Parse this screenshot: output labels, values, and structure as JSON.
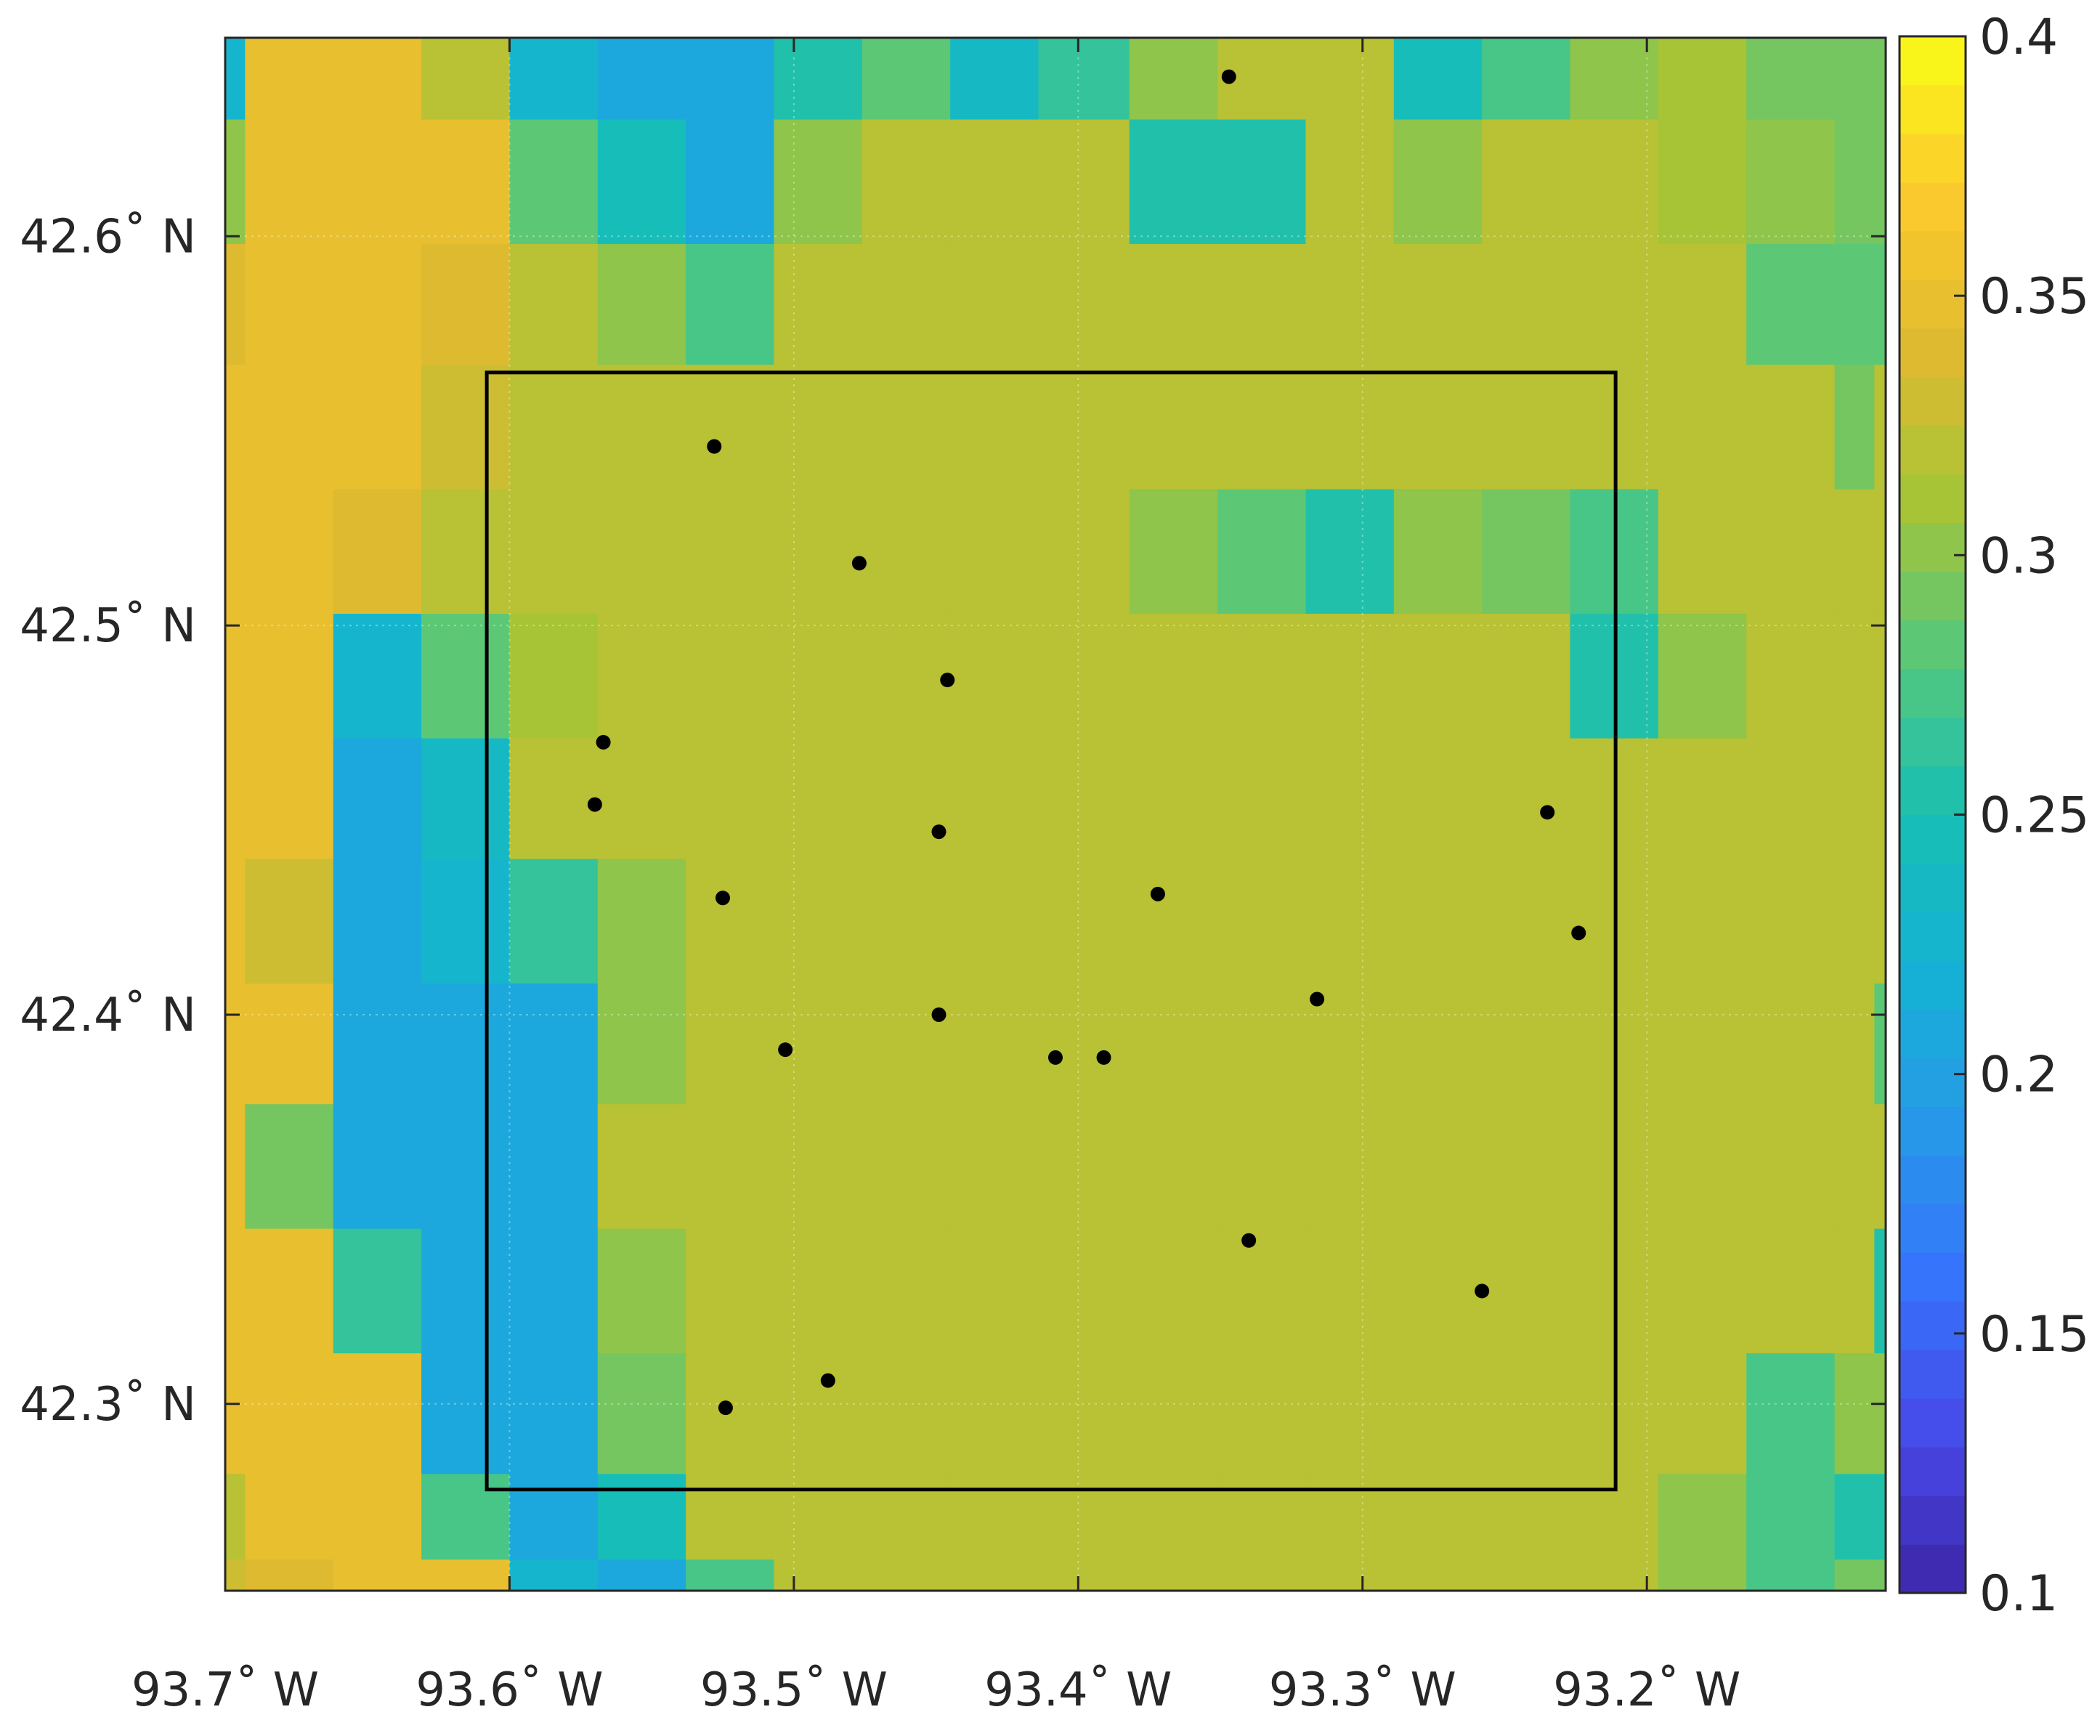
{
  "chart_data": {
    "type": "heatmap",
    "title": "",
    "xlabel": "",
    "ylabel": "",
    "x_ticks": [
      {
        "value": -93.7,
        "label": "93.7˚ W"
      },
      {
        "value": -93.6,
        "label": "93.6˚ W"
      },
      {
        "value": -93.5,
        "label": "93.5˚ W"
      },
      {
        "value": -93.4,
        "label": "93.4˚ W"
      },
      {
        "value": -93.3,
        "label": "93.3˚ W"
      },
      {
        "value": -93.2,
        "label": "93.2˚ W"
      }
    ],
    "y_ticks": [
      {
        "value": 42.3,
        "label": "42.3˚ N"
      },
      {
        "value": 42.4,
        "label": "42.4˚ N"
      },
      {
        "value": 42.5,
        "label": "42.5˚ N"
      },
      {
        "value": 42.6,
        "label": "42.6˚ N"
      }
    ],
    "xlim": [
      -93.7,
      -93.116
    ],
    "ylim": [
      42.252,
      42.651
    ],
    "grid": true,
    "colormap": "parula",
    "colorbar": {
      "clim": [
        0.1,
        0.4
      ],
      "levels": 32,
      "location": "right",
      "ticks": [
        {
          "value": 0.1,
          "label": "0.1"
        },
        {
          "value": 0.15,
          "label": "0.15"
        },
        {
          "value": 0.2,
          "label": "0.2"
        },
        {
          "value": 0.25,
          "label": "0.25"
        },
        {
          "value": 0.3,
          "label": "0.3"
        },
        {
          "value": 0.35,
          "label": "0.35"
        },
        {
          "value": 0.4,
          "label": "0.4"
        }
      ]
    },
    "grid_values": {
      "lon_edges": [
        -93.7,
        -93.693,
        -93.662,
        -93.631,
        -93.6,
        -93.569,
        -93.538,
        -93.507,
        -93.476,
        -93.445,
        -93.414,
        -93.382,
        -93.351,
        -93.32,
        -93.289,
        -93.258,
        -93.227,
        -93.196,
        -93.165,
        -93.134,
        -93.12,
        -93.116
      ],
      "lat_edges": [
        42.252,
        42.26,
        42.282,
        42.313,
        42.345,
        42.377,
        42.408,
        42.44,
        42.471,
        42.503,
        42.535,
        42.567,
        42.598,
        42.63,
        42.651
      ],
      "rows": [
        [
          0.228,
          0.351,
          0.351,
          0.325,
          0.225,
          0.205,
          0.205,
          0.258,
          0.285,
          0.24,
          0.265,
          0.3,
          0.317,
          0.317,
          0.248,
          0.27,
          0.3,
          0.31,
          0.293,
          0.293,
          0.293
        ],
        [
          0.3,
          0.351,
          0.351,
          0.351,
          0.285,
          0.25,
          0.212,
          0.3,
          0.317,
          0.317,
          0.317,
          0.255,
          0.255,
          0.317,
          0.305,
          0.317,
          0.317,
          0.31,
          0.305,
          0.293,
          0.293
        ],
        [
          0.335,
          0.351,
          0.351,
          0.34,
          0.317,
          0.3,
          0.275,
          0.317,
          0.317,
          0.317,
          0.317,
          0.317,
          0.317,
          0.317,
          0.317,
          0.317,
          0.317,
          0.317,
          0.285,
          0.285,
          0.285
        ],
        [
          0.351,
          0.351,
          0.351,
          0.327,
          0.317,
          0.317,
          0.317,
          0.317,
          0.317,
          0.317,
          0.317,
          0.317,
          0.317,
          0.317,
          0.317,
          0.317,
          0.317,
          0.317,
          0.317,
          0.29,
          0.317
        ],
        [
          0.351,
          0.351,
          0.342,
          0.317,
          0.317,
          0.317,
          0.317,
          0.317,
          0.317,
          0.317,
          0.317,
          0.305,
          0.285,
          0.255,
          0.3,
          0.29,
          0.275,
          0.317,
          0.317,
          0.317,
          0.317
        ],
        [
          0.351,
          0.351,
          0.225,
          0.28,
          0.31,
          0.317,
          0.317,
          0.317,
          0.317,
          0.317,
          0.317,
          0.317,
          0.317,
          0.317,
          0.317,
          0.317,
          0.258,
          0.3,
          0.317,
          0.317,
          0.317
        ],
        [
          0.351,
          0.345,
          0.205,
          0.238,
          0.317,
          0.317,
          0.317,
          0.317,
          0.317,
          0.317,
          0.317,
          0.317,
          0.317,
          0.317,
          0.317,
          0.317,
          0.317,
          0.317,
          0.317,
          0.317,
          0.317
        ],
        [
          0.351,
          0.333,
          0.205,
          0.225,
          0.262,
          0.3,
          0.317,
          0.317,
          0.317,
          0.317,
          0.317,
          0.317,
          0.317,
          0.317,
          0.317,
          0.317,
          0.317,
          0.317,
          0.317,
          0.317,
          0.317
        ],
        [
          0.351,
          0.348,
          0.205,
          0.205,
          0.205,
          0.3,
          0.317,
          0.317,
          0.317,
          0.317,
          0.317,
          0.317,
          0.317,
          0.317,
          0.317,
          0.317,
          0.317,
          0.317,
          0.317,
          0.317,
          0.285
        ],
        [
          0.351,
          0.29,
          0.205,
          0.205,
          0.205,
          0.317,
          0.317,
          0.317,
          0.317,
          0.317,
          0.317,
          0.317,
          0.317,
          0.317,
          0.317,
          0.317,
          0.317,
          0.317,
          0.317,
          0.317,
          0.317
        ],
        [
          0.351,
          0.351,
          0.262,
          0.205,
          0.205,
          0.3,
          0.317,
          0.317,
          0.317,
          0.317,
          0.317,
          0.317,
          0.317,
          0.317,
          0.317,
          0.317,
          0.317,
          0.317,
          0.317,
          0.317,
          0.255
        ],
        [
          0.351,
          0.351,
          0.351,
          0.205,
          0.205,
          0.29,
          0.317,
          0.317,
          0.317,
          0.317,
          0.317,
          0.317,
          0.317,
          0.317,
          0.317,
          0.317,
          0.317,
          0.317,
          0.275,
          0.3,
          0.3
        ],
        [
          0.325,
          0.351,
          0.351,
          0.27,
          0.208,
          0.245,
          0.317,
          0.317,
          0.317,
          0.317,
          0.317,
          0.317,
          0.317,
          0.317,
          0.317,
          0.317,
          0.317,
          0.305,
          0.275,
          0.255,
          0.255
        ],
        [
          0.33,
          0.342,
          0.351,
          0.345,
          0.225,
          0.212,
          0.275,
          0.317,
          0.317,
          0.317,
          0.317,
          0.317,
          0.317,
          0.317,
          0.317,
          0.317,
          0.317,
          0.305,
          0.275,
          0.29,
          0.29
        ]
      ]
    },
    "study_area": {
      "lon_range": [
        -93.608,
        -93.211
      ],
      "lat_range": [
        42.278,
        42.565
      ]
    },
    "stations": [
      {
        "lon": -93.347,
        "lat": 42.641
      },
      {
        "lon": -93.528,
        "lat": 42.546
      },
      {
        "lon": -93.477,
        "lat": 42.516
      },
      {
        "lon": -93.446,
        "lat": 42.486
      },
      {
        "lon": -93.567,
        "lat": 42.47
      },
      {
        "lon": -93.57,
        "lat": 42.454
      },
      {
        "lon": -93.449,
        "lat": 42.447
      },
      {
        "lon": -93.235,
        "lat": 42.452
      },
      {
        "lon": -93.525,
        "lat": 42.43
      },
      {
        "lon": -93.372,
        "lat": 42.431
      },
      {
        "lon": -93.224,
        "lat": 42.421
      },
      {
        "lon": -93.316,
        "lat": 42.404
      },
      {
        "lon": -93.449,
        "lat": 42.4
      },
      {
        "lon": -93.503,
        "lat": 42.391
      },
      {
        "lon": -93.408,
        "lat": 42.389
      },
      {
        "lon": -93.391,
        "lat": 42.389
      },
      {
        "lon": -93.34,
        "lat": 42.342
      },
      {
        "lon": -93.258,
        "lat": 42.329
      },
      {
        "lon": -93.488,
        "lat": 42.306
      },
      {
        "lon": -93.524,
        "lat": 42.299
      }
    ]
  }
}
